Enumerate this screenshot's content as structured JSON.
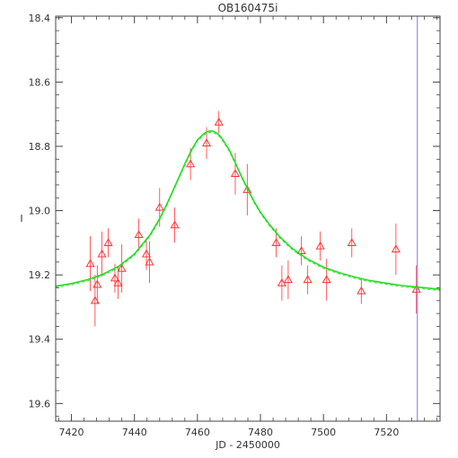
{
  "chart_data": {
    "type": "scatter",
    "title": "OB160475i",
    "xlabel": "JD - 2450000",
    "ylabel": "I",
    "xlim": [
      7415,
      7537
    ],
    "ylim": [
      18.395,
      19.655
    ],
    "y_inverted": true,
    "xticks": [
      7420,
      7440,
      7460,
      7480,
      7500,
      7520
    ],
    "yticks": [
      18.4,
      18.6,
      18.8,
      19.0,
      19.2,
      19.4,
      19.6
    ],
    "x_tick_labels": [
      "7420",
      "7440",
      "7460",
      "7480",
      "7500",
      "7520"
    ],
    "y_tick_labels": [
      "18.4",
      "18.6",
      "18.8",
      "19.0",
      "19.2",
      "19.4",
      "19.6"
    ],
    "grid": false,
    "series": [
      {
        "kind": "points-with-errorbars",
        "marker": "triangle-open",
        "color": "#ff3333",
        "points": [
          {
            "x": 7426.0,
            "y": 19.165,
            "err": 0.085
          },
          {
            "x": 7427.5,
            "y": 19.28,
            "err": 0.08
          },
          {
            "x": 7428.2,
            "y": 19.23,
            "err": 0.06
          },
          {
            "x": 7429.7,
            "y": 19.135,
            "err": 0.07
          },
          {
            "x": 7431.7,
            "y": 19.1,
            "err": 0.045
          },
          {
            "x": 7433.8,
            "y": 19.21,
            "err": 0.045
          },
          {
            "x": 7434.8,
            "y": 19.225,
            "err": 0.05
          },
          {
            "x": 7436.0,
            "y": 19.18,
            "err": 0.075
          },
          {
            "x": 7441.4,
            "y": 19.075,
            "err": 0.05
          },
          {
            "x": 7443.8,
            "y": 19.135,
            "err": 0.05
          },
          {
            "x": 7444.8,
            "y": 19.16,
            "err": 0.065
          },
          {
            "x": 7448.0,
            "y": 18.99,
            "err": 0.06
          },
          {
            "x": 7452.8,
            "y": 19.045,
            "err": 0.055
          },
          {
            "x": 7457.8,
            "y": 18.855,
            "err": 0.05
          },
          {
            "x": 7462.9,
            "y": 18.79,
            "err": 0.05
          },
          {
            "x": 7466.8,
            "y": 18.725,
            "err": 0.035
          },
          {
            "x": 7472.0,
            "y": 18.885,
            "err": 0.065
          },
          {
            "x": 7475.8,
            "y": 18.935,
            "err": 0.08
          },
          {
            "x": 7485.0,
            "y": 19.1,
            "err": 0.045
          },
          {
            "x": 7486.8,
            "y": 19.225,
            "err": 0.055
          },
          {
            "x": 7488.8,
            "y": 19.215,
            "err": 0.06
          },
          {
            "x": 7493.0,
            "y": 19.125,
            "err": 0.045
          },
          {
            "x": 7495.0,
            "y": 19.215,
            "err": 0.045
          },
          {
            "x": 7499.0,
            "y": 19.11,
            "err": 0.045
          },
          {
            "x": 7501.0,
            "y": 19.215,
            "err": 0.065
          },
          {
            "x": 7509.0,
            "y": 19.1,
            "err": 0.045
          },
          {
            "x": 7512.0,
            "y": 19.25,
            "err": 0.04
          },
          {
            "x": 7523.0,
            "y": 19.12,
            "err": 0.08
          },
          {
            "x": 7529.5,
            "y": 19.245,
            "err": 0.075
          }
        ]
      },
      {
        "kind": "model-curve",
        "color": "#22dd22",
        "x": [
          7415,
          7420,
          7425,
          7430,
          7435,
          7440,
          7445,
          7448,
          7450,
          7452,
          7454,
          7456,
          7458,
          7460,
          7462,
          7463,
          7464,
          7465,
          7466,
          7467,
          7468,
          7470,
          7472,
          7474,
          7476,
          7478,
          7480,
          7483,
          7486,
          7490,
          7495,
          7500,
          7505,
          7510,
          7515,
          7520,
          7525,
          7530,
          7537
        ],
        "y": [
          19.235,
          19.227,
          19.215,
          19.198,
          19.173,
          19.135,
          19.075,
          19.025,
          18.986,
          18.943,
          18.899,
          18.855,
          18.813,
          18.78,
          18.761,
          18.755,
          18.752,
          18.753,
          18.758,
          18.766,
          18.779,
          18.81,
          18.851,
          18.894,
          18.934,
          18.972,
          19.005,
          19.045,
          19.08,
          19.117,
          19.151,
          19.176,
          19.193,
          19.207,
          19.218,
          19.226,
          19.233,
          19.238,
          19.245
        ]
      },
      {
        "kind": "vertical-line",
        "color": "#7777ff",
        "x": 7529.8
      }
    ]
  }
}
